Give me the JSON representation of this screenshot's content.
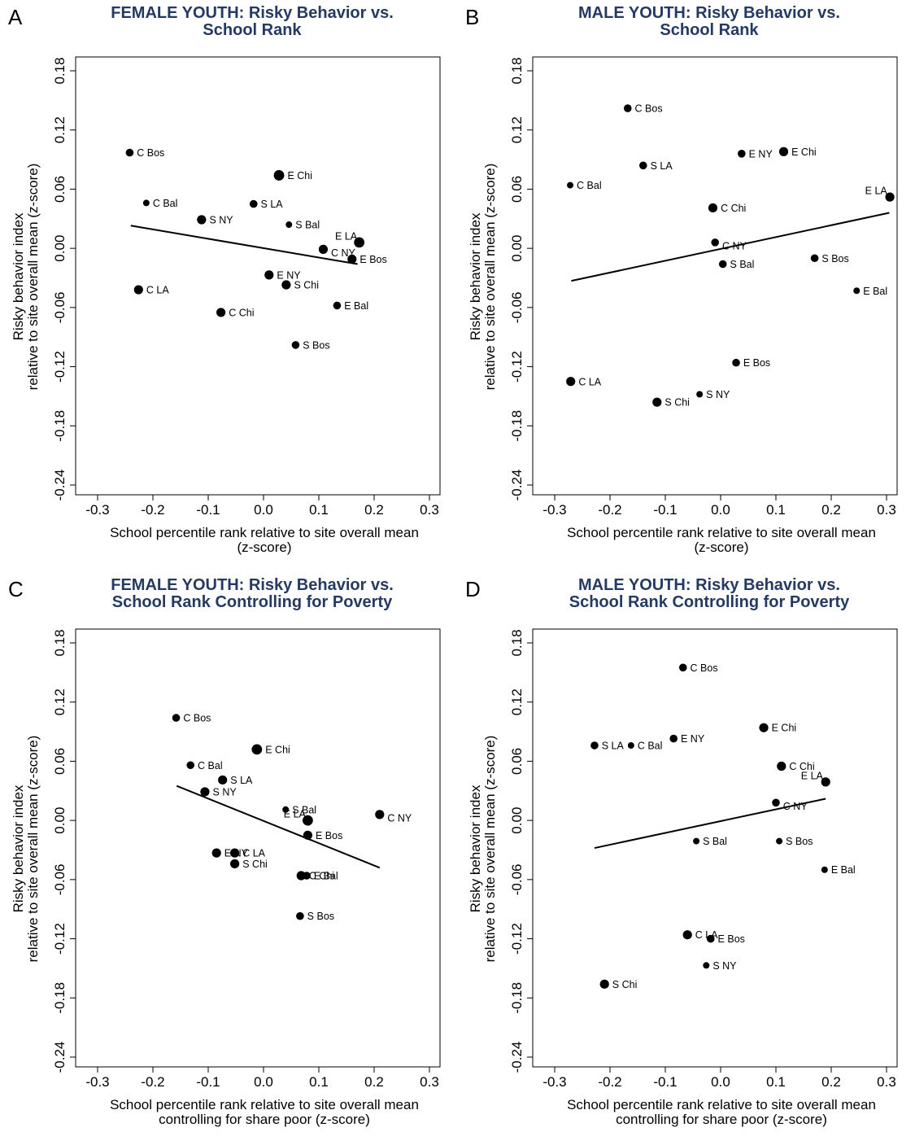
{
  "chart_data": [
    {
      "type": "scatter",
      "panel_letter": "A",
      "title": [
        "FEMALE YOUTH: Risky Behavior vs.",
        "School Rank"
      ],
      "xlabel": [
        "School percentile rank relative to site overall mean",
        "(z-score)"
      ],
      "ylabel": [
        "Risky behavior index",
        "relative to site overall mean (z-score)"
      ],
      "xlim": [
        -0.3,
        0.3
      ],
      "ylim": [
        -0.24,
        0.18
      ],
      "xticks": [
        "-0.3",
        "-0.2",
        "-0.1",
        "0.0",
        "0.1",
        "0.2",
        "0.3"
      ],
      "yticks": [
        "-0.24",
        "-0.18",
        "-0.12",
        "-0.06",
        "0.00",
        "0.06",
        "0.12",
        "0.18"
      ],
      "grid": false,
      "points": [
        {
          "label": "C Bos",
          "x": -0.242,
          "y": 0.097,
          "weight": 2
        },
        {
          "label": "C Bal",
          "x": -0.212,
          "y": 0.046,
          "weight": 1
        },
        {
          "label": "S NY",
          "x": -0.112,
          "y": 0.029,
          "weight": 3
        },
        {
          "label": "S LA",
          "x": -0.018,
          "y": 0.045,
          "weight": 2
        },
        {
          "label": "E Chi",
          "x": 0.028,
          "y": 0.074,
          "weight": 4
        },
        {
          "label": "S Bal",
          "x": 0.046,
          "y": 0.024,
          "weight": 1
        },
        {
          "label": "E LA",
          "x": 0.173,
          "y": 0.006,
          "weight": 4
        },
        {
          "label": "C NY",
          "x": 0.108,
          "y": -0.001,
          "weight": 3
        },
        {
          "label": "E Bos",
          "x": 0.16,
          "y": -0.011,
          "weight": 3
        },
        {
          "label": "E NY",
          "x": 0.01,
          "y": -0.027,
          "weight": 3
        },
        {
          "label": "S Chi",
          "x": 0.041,
          "y": -0.037,
          "weight": 3
        },
        {
          "label": "C LA",
          "x": -0.226,
          "y": -0.042,
          "weight": 3
        },
        {
          "label": "E Bal",
          "x": 0.133,
          "y": -0.058,
          "weight": 2
        },
        {
          "label": "C Chi",
          "x": -0.077,
          "y": -0.065,
          "weight": 3
        },
        {
          "label": "S Bos",
          "x": 0.058,
          "y": -0.098,
          "weight": 2
        }
      ],
      "fit_line": {
        "x": [
          -0.24,
          0.17
        ],
        "y": [
          0.023,
          -0.016
        ]
      }
    },
    {
      "type": "scatter",
      "panel_letter": "B",
      "title": [
        "MALE YOUTH: Risky Behavior vs.",
        "School Rank"
      ],
      "xlabel": [
        "School percentile rank relative to site overall mean",
        "(z-score)"
      ],
      "ylabel": [
        "Risky behavior index",
        "relative to site overall mean (z-score)"
      ],
      "xlim": [
        -0.3,
        0.3
      ],
      "ylim": [
        -0.24,
        0.18
      ],
      "xticks": [
        "-0.3",
        "-0.2",
        "-0.1",
        "0.0",
        "0.1",
        "0.2",
        "0.3"
      ],
      "yticks": [
        "-0.24",
        "-0.18",
        "-0.12",
        "-0.06",
        "0.00",
        "0.06",
        "0.12",
        "0.18"
      ],
      "grid": false,
      "points": [
        {
          "label": "C Bos",
          "x": -0.168,
          "y": 0.142,
          "weight": 2
        },
        {
          "label": "E NY",
          "x": 0.038,
          "y": 0.096,
          "weight": 2
        },
        {
          "label": "E Chi",
          "x": 0.114,
          "y": 0.098,
          "weight": 3
        },
        {
          "label": "S LA",
          "x": -0.14,
          "y": 0.084,
          "weight": 2
        },
        {
          "label": "C Bal",
          "x": -0.272,
          "y": 0.064,
          "weight": 1
        },
        {
          "label": "E LA",
          "x": 0.306,
          "y": 0.052,
          "weight": 3
        },
        {
          "label": "C Chi",
          "x": -0.014,
          "y": 0.041,
          "weight": 3
        },
        {
          "label": "C NY",
          "x": -0.01,
          "y": 0.006,
          "weight": 2
        },
        {
          "label": "S Bos",
          "x": 0.17,
          "y": -0.01,
          "weight": 2
        },
        {
          "label": "S Bal",
          "x": 0.004,
          "y": -0.016,
          "weight": 2
        },
        {
          "label": "E Bal",
          "x": 0.246,
          "y": -0.043,
          "weight": 1
        },
        {
          "label": "E Bos",
          "x": 0.028,
          "y": -0.116,
          "weight": 2
        },
        {
          "label": "C LA",
          "x": -0.271,
          "y": -0.135,
          "weight": 3
        },
        {
          "label": "S NY",
          "x": -0.038,
          "y": -0.148,
          "weight": 1
        },
        {
          "label": "S Chi",
          "x": -0.115,
          "y": -0.156,
          "weight": 3
        }
      ],
      "fit_line": {
        "x": [
          -0.27,
          0.305
        ],
        "y": [
          -0.033,
          0.036
        ]
      }
    },
    {
      "type": "scatter",
      "panel_letter": "C",
      "title": [
        "FEMALE YOUTH: Risky Behavior vs.",
        "School Rank Controlling for Poverty"
      ],
      "xlabel": [
        "School percentile rank relative to site overall mean",
        "controlling for share poor (z-score)"
      ],
      "ylabel": [
        "Risky behavior index",
        "relative to site overall mean (z-score)"
      ],
      "xlim": [
        -0.3,
        0.3
      ],
      "ylim": [
        -0.24,
        0.18
      ],
      "xticks": [
        "-0.3",
        "-0.2",
        "-0.1",
        "0.0",
        "0.1",
        "0.2",
        "0.3"
      ],
      "yticks": [
        "-0.24",
        "-0.18",
        "-0.12",
        "-0.06",
        "0.00",
        "0.06",
        "0.12",
        "0.18"
      ],
      "grid": false,
      "points": [
        {
          "label": "C Bos",
          "x": -0.158,
          "y": 0.104,
          "weight": 2
        },
        {
          "label": "E Chi",
          "x": -0.012,
          "y": 0.072,
          "weight": 4
        },
        {
          "label": "C Bal",
          "x": -0.132,
          "y": 0.056,
          "weight": 2
        },
        {
          "label": "S LA",
          "x": -0.074,
          "y": 0.041,
          "weight": 3
        },
        {
          "label": "S NY",
          "x": -0.106,
          "y": 0.029,
          "weight": 3
        },
        {
          "label": "S Bal",
          "x": 0.04,
          "y": 0.011,
          "weight": 1
        },
        {
          "label": "C NY",
          "x": 0.21,
          "y": 0.006,
          "weight": 3
        },
        {
          "label": "E LA",
          "x": 0.08,
          "y": 0.0,
          "weight": 4
        },
        {
          "label": "E Bos",
          "x": 0.08,
          "y": -0.015,
          "weight": 3
        },
        {
          "label": "E NY",
          "x": -0.085,
          "y": -0.033,
          "weight": 3
        },
        {
          "label": "C LA",
          "x": -0.052,
          "y": -0.033,
          "weight": 3
        },
        {
          "label": "S Chi",
          "x": -0.052,
          "y": -0.044,
          "weight": 3
        },
        {
          "label": "C Chi",
          "x": 0.068,
          "y": -0.056,
          "weight": 3
        },
        {
          "label": "E Bal",
          "x": 0.078,
          "y": -0.056,
          "weight": 2
        },
        {
          "label": "S Bos",
          "x": 0.066,
          "y": -0.097,
          "weight": 2
        }
      ],
      "fit_line": {
        "x": [
          -0.157,
          0.21
        ],
        "y": [
          0.035,
          -0.048
        ]
      }
    },
    {
      "type": "scatter",
      "panel_letter": "D",
      "title": [
        "MALE YOUTH: Risky Behavior vs.",
        "School Rank Controlling for Poverty"
      ],
      "xlabel": [
        "School percentile rank relative to site overall mean",
        "controlling for share poor (z-score)"
      ],
      "ylabel": [
        "Risky behavior index",
        "relative to site overall mean (z-score)"
      ],
      "xlim": [
        -0.3,
        0.3
      ],
      "ylim": [
        -0.24,
        0.18
      ],
      "xticks": [
        "-0.3",
        "-0.2",
        "-0.1",
        "0.0",
        "0.1",
        "0.2",
        "0.3"
      ],
      "yticks": [
        "-0.24",
        "-0.18",
        "-0.12",
        "-0.06",
        "0.00",
        "0.06",
        "0.12",
        "0.18"
      ],
      "grid": false,
      "points": [
        {
          "label": "C Bos",
          "x": -0.068,
          "y": 0.155,
          "weight": 2
        },
        {
          "label": "E Chi",
          "x": 0.078,
          "y": 0.094,
          "weight": 3
        },
        {
          "label": "E NY",
          "x": -0.085,
          "y": 0.083,
          "weight": 2
        },
        {
          "label": "S LA",
          "x": -0.228,
          "y": 0.076,
          "weight": 2
        },
        {
          "label": "C Bal",
          "x": -0.162,
          "y": 0.076,
          "weight": 1
        },
        {
          "label": "C Chi",
          "x": 0.11,
          "y": 0.055,
          "weight": 3
        },
        {
          "label": "E LA",
          "x": 0.19,
          "y": 0.039,
          "weight": 3
        },
        {
          "label": "C NY",
          "x": 0.1,
          "y": 0.018,
          "weight": 2
        },
        {
          "label": "S Bal",
          "x": -0.044,
          "y": -0.021,
          "weight": 1
        },
        {
          "label": "S Bos",
          "x": 0.106,
          "y": -0.021,
          "weight": 1
        },
        {
          "label": "E Bal",
          "x": 0.188,
          "y": -0.05,
          "weight": 1
        },
        {
          "label": "C LA",
          "x": -0.06,
          "y": -0.116,
          "weight": 3
        },
        {
          "label": "E Bos",
          "x": -0.018,
          "y": -0.12,
          "weight": 2
        },
        {
          "label": "S NY",
          "x": -0.026,
          "y": -0.147,
          "weight": 1
        },
        {
          "label": "S Chi",
          "x": -0.21,
          "y": -0.166,
          "weight": 3
        }
      ],
      "fit_line": {
        "x": [
          -0.228,
          0.19
        ],
        "y": [
          -0.028,
          0.022
        ]
      }
    }
  ]
}
